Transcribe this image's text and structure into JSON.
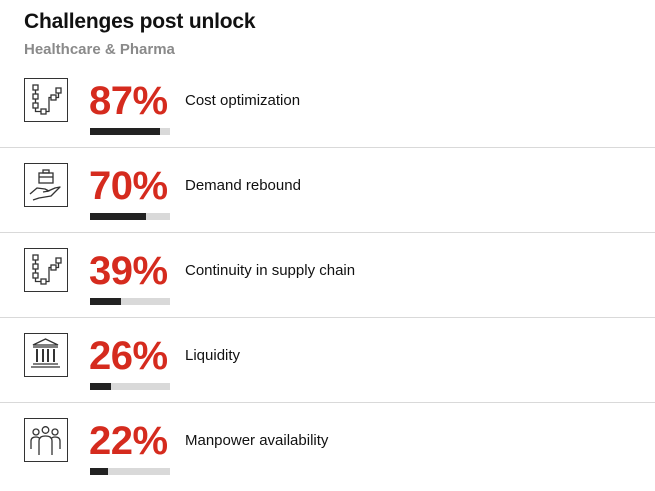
{
  "title": "Challenges post unlock",
  "subtitle": "Healthcare & Pharma",
  "colors": {
    "accent": "#d52b1e",
    "bar_fill": "#222222",
    "bar_track": "#d9d9d9"
  },
  "chart_data": {
    "type": "bar",
    "title": "Challenges post unlock",
    "subtitle": "Healthcare & Pharma",
    "categories": [
      "Cost optimization",
      "Demand rebound",
      "Continuity in supply chain",
      "Liquidity",
      "Manpower availability"
    ],
    "values": [
      87,
      70,
      39,
      26,
      22
    ],
    "value_labels": [
      "87%",
      "70%",
      "39%",
      "26%",
      "22%"
    ],
    "ylim": [
      0,
      100
    ],
    "xlabel": "",
    "ylabel": "",
    "icons": [
      "flowchart-icon",
      "hand-briefcase-icon",
      "flowchart-icon",
      "bank-icon",
      "people-icon"
    ]
  }
}
